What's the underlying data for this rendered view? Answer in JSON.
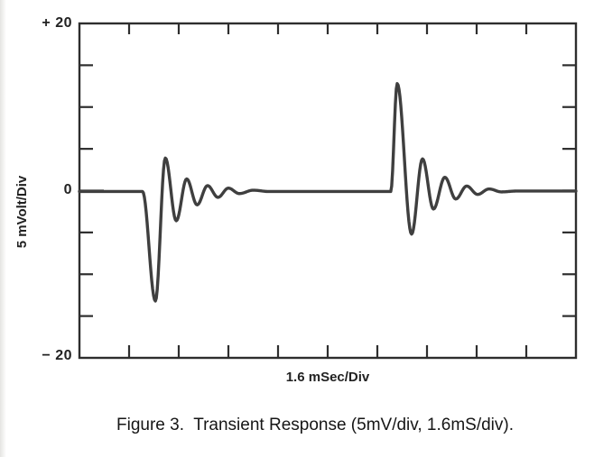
{
  "figure": {
    "caption": "Figure 3.  Transient Response (5mV/div, 1.6mS/div).",
    "xlabel": "1.6 mSec/Div",
    "ylabel": "5 mVolt/Div",
    "ytick_top": "+ 20",
    "ytick_zero": "0",
    "ytick_bottom": "− 20"
  },
  "colors": {
    "ink": "#2e2e2e",
    "trace": "#3f3f3f",
    "background": "#ffffff"
  },
  "chart_data": {
    "type": "line",
    "title": "Figure 3. Transient Response (5mV/div, 1.6mS/div).",
    "xlabel": "1.6 mSec/Div",
    "ylabel": "5 mVolt/Div",
    "x_scale_per_division": "1.6 mSec",
    "y_scale_per_division": "5 mVolt",
    "ylim": [
      -20,
      20
    ],
    "xlim_divisions": [
      0,
      10
    ],
    "x_divisions": 10,
    "y_divisions": 8,
    "ytick_labels": [
      "+ 20",
      "0",
      "− 20"
    ],
    "grid": false,
    "legend": false,
    "description": "Oscilloscope-style transient response: two ringing transients on a flat 0 mV baseline. First transient (~1.4 divisions in) spikes negative to about -13 mV then rings (+4, -3.6, +1.4, -1.7 mV...) decaying to baseline. Second transient (~6.3 divisions in) spikes positive to about +13 mV then rings (-5.2, +3.8, -2.2, +1.6 mV...) decaying to baseline.",
    "series": [
      {
        "name": "transient-response-trace",
        "interpolation": "cosine-between-extrema",
        "units": [
          "divisions",
          "mV"
        ],
        "points": [
          [
            0,
            -0.1
          ],
          [
            1.27,
            -0.1
          ],
          [
            1.53,
            -13.2
          ],
          [
            1.73,
            3.9
          ],
          [
            1.95,
            -3.6
          ],
          [
            2.16,
            1.4
          ],
          [
            2.37,
            -1.7
          ],
          [
            2.58,
            0.6
          ],
          [
            2.79,
            -0.8
          ],
          [
            3.0,
            0.3
          ],
          [
            3.22,
            -0.35
          ],
          [
            3.5,
            0.05
          ],
          [
            3.8,
            -0.1
          ],
          [
            6.27,
            -0.1
          ],
          [
            6.4,
            12.8
          ],
          [
            6.69,
            -5.2
          ],
          [
            6.91,
            3.8
          ],
          [
            7.13,
            -2.2
          ],
          [
            7.36,
            1.6
          ],
          [
            7.58,
            -1.0
          ],
          [
            7.8,
            0.55
          ],
          [
            8.02,
            -0.45
          ],
          [
            8.25,
            0.2
          ],
          [
            8.5,
            -0.15
          ],
          [
            8.8,
            -0.05
          ],
          [
            10,
            -0.05
          ]
        ]
      }
    ]
  }
}
